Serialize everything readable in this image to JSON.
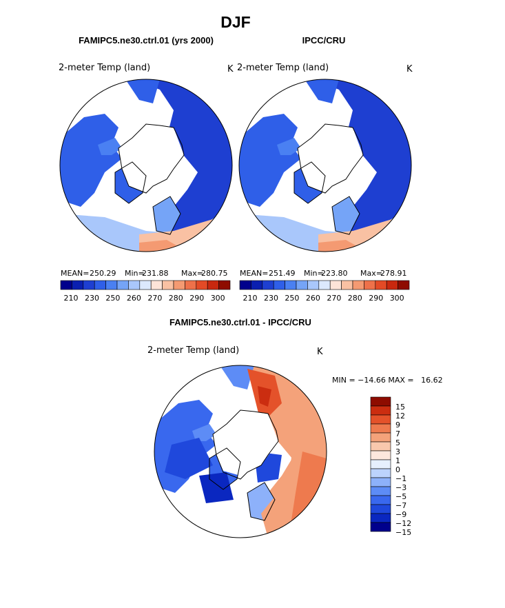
{
  "page_title": "DJF",
  "palettes": {
    "abs": [
      "#00008c",
      "#0a1fb0",
      "#1e3fd1",
      "#2f5fe8",
      "#4a80f2",
      "#75a4f7",
      "#a9c7fb",
      "#dce9fd",
      "#fde4d8",
      "#f9c1a3",
      "#f49a72",
      "#ee714a",
      "#e34a26",
      "#c8280f",
      "#8e0c00"
    ],
    "diff": [
      "#00008c",
      "#0a27c0",
      "#1f48dc",
      "#3968ee",
      "#5d8cf6",
      "#8db1fa",
      "#bcd3fd",
      "#e6f0fe",
      "#fde7dd",
      "#f9c8ad",
      "#f4a27a",
      "#ee7a4e",
      "#e4522a",
      "#cb2d10",
      "#8e0c00"
    ]
  },
  "map_colors": {
    "land_cold": "#2f5fe8",
    "land_mid": "#75a4f7",
    "land_warm": "#f49a72",
    "land_hot": "#e34a26",
    "ocean": "#ffffff",
    "coast": "#000000"
  },
  "chart_data": [
    {
      "type": "map",
      "title": "FAMIPC5.ne30.ctrl.01 (yrs 2000)",
      "variable": "2-meter Temp (land)",
      "units": "K",
      "stats": {
        "mean_label": "MEAN=",
        "mean": "250.29",
        "min_label": "Min=",
        "min": "231.88",
        "max_label": "Max=",
        "max": "280.75"
      },
      "colorbar": {
        "ticks": [
          "210",
          "230",
          "250",
          "260",
          "270",
          "280",
          "290",
          "300"
        ]
      }
    },
    {
      "type": "map",
      "title": "IPCC/CRU",
      "variable": "2-meter Temp (land)",
      "units": "K",
      "stats": {
        "mean_label": "MEAN=",
        "mean": "251.49",
        "min_label": "Min=",
        "min": "223.80",
        "max_label": "Max=",
        "max": "278.91"
      },
      "colorbar": {
        "ticks": [
          "210",
          "230",
          "250",
          "260",
          "270",
          "280",
          "290",
          "300"
        ]
      }
    },
    {
      "type": "map",
      "title": "FAMIPC5.ne30.ctrl.01 - IPCC/CRU",
      "variable": "2-meter Temp (land)",
      "units": "K",
      "stats_text": "MIN = −14.66 MAX =   16.62",
      "colorbar": {
        "labels": [
          "15",
          "12",
          "9",
          "7",
          "5",
          "3",
          "1",
          "0",
          "−1",
          "−3",
          "−5",
          "−7",
          "−9",
          "−12",
          "−15"
        ]
      }
    }
  ]
}
